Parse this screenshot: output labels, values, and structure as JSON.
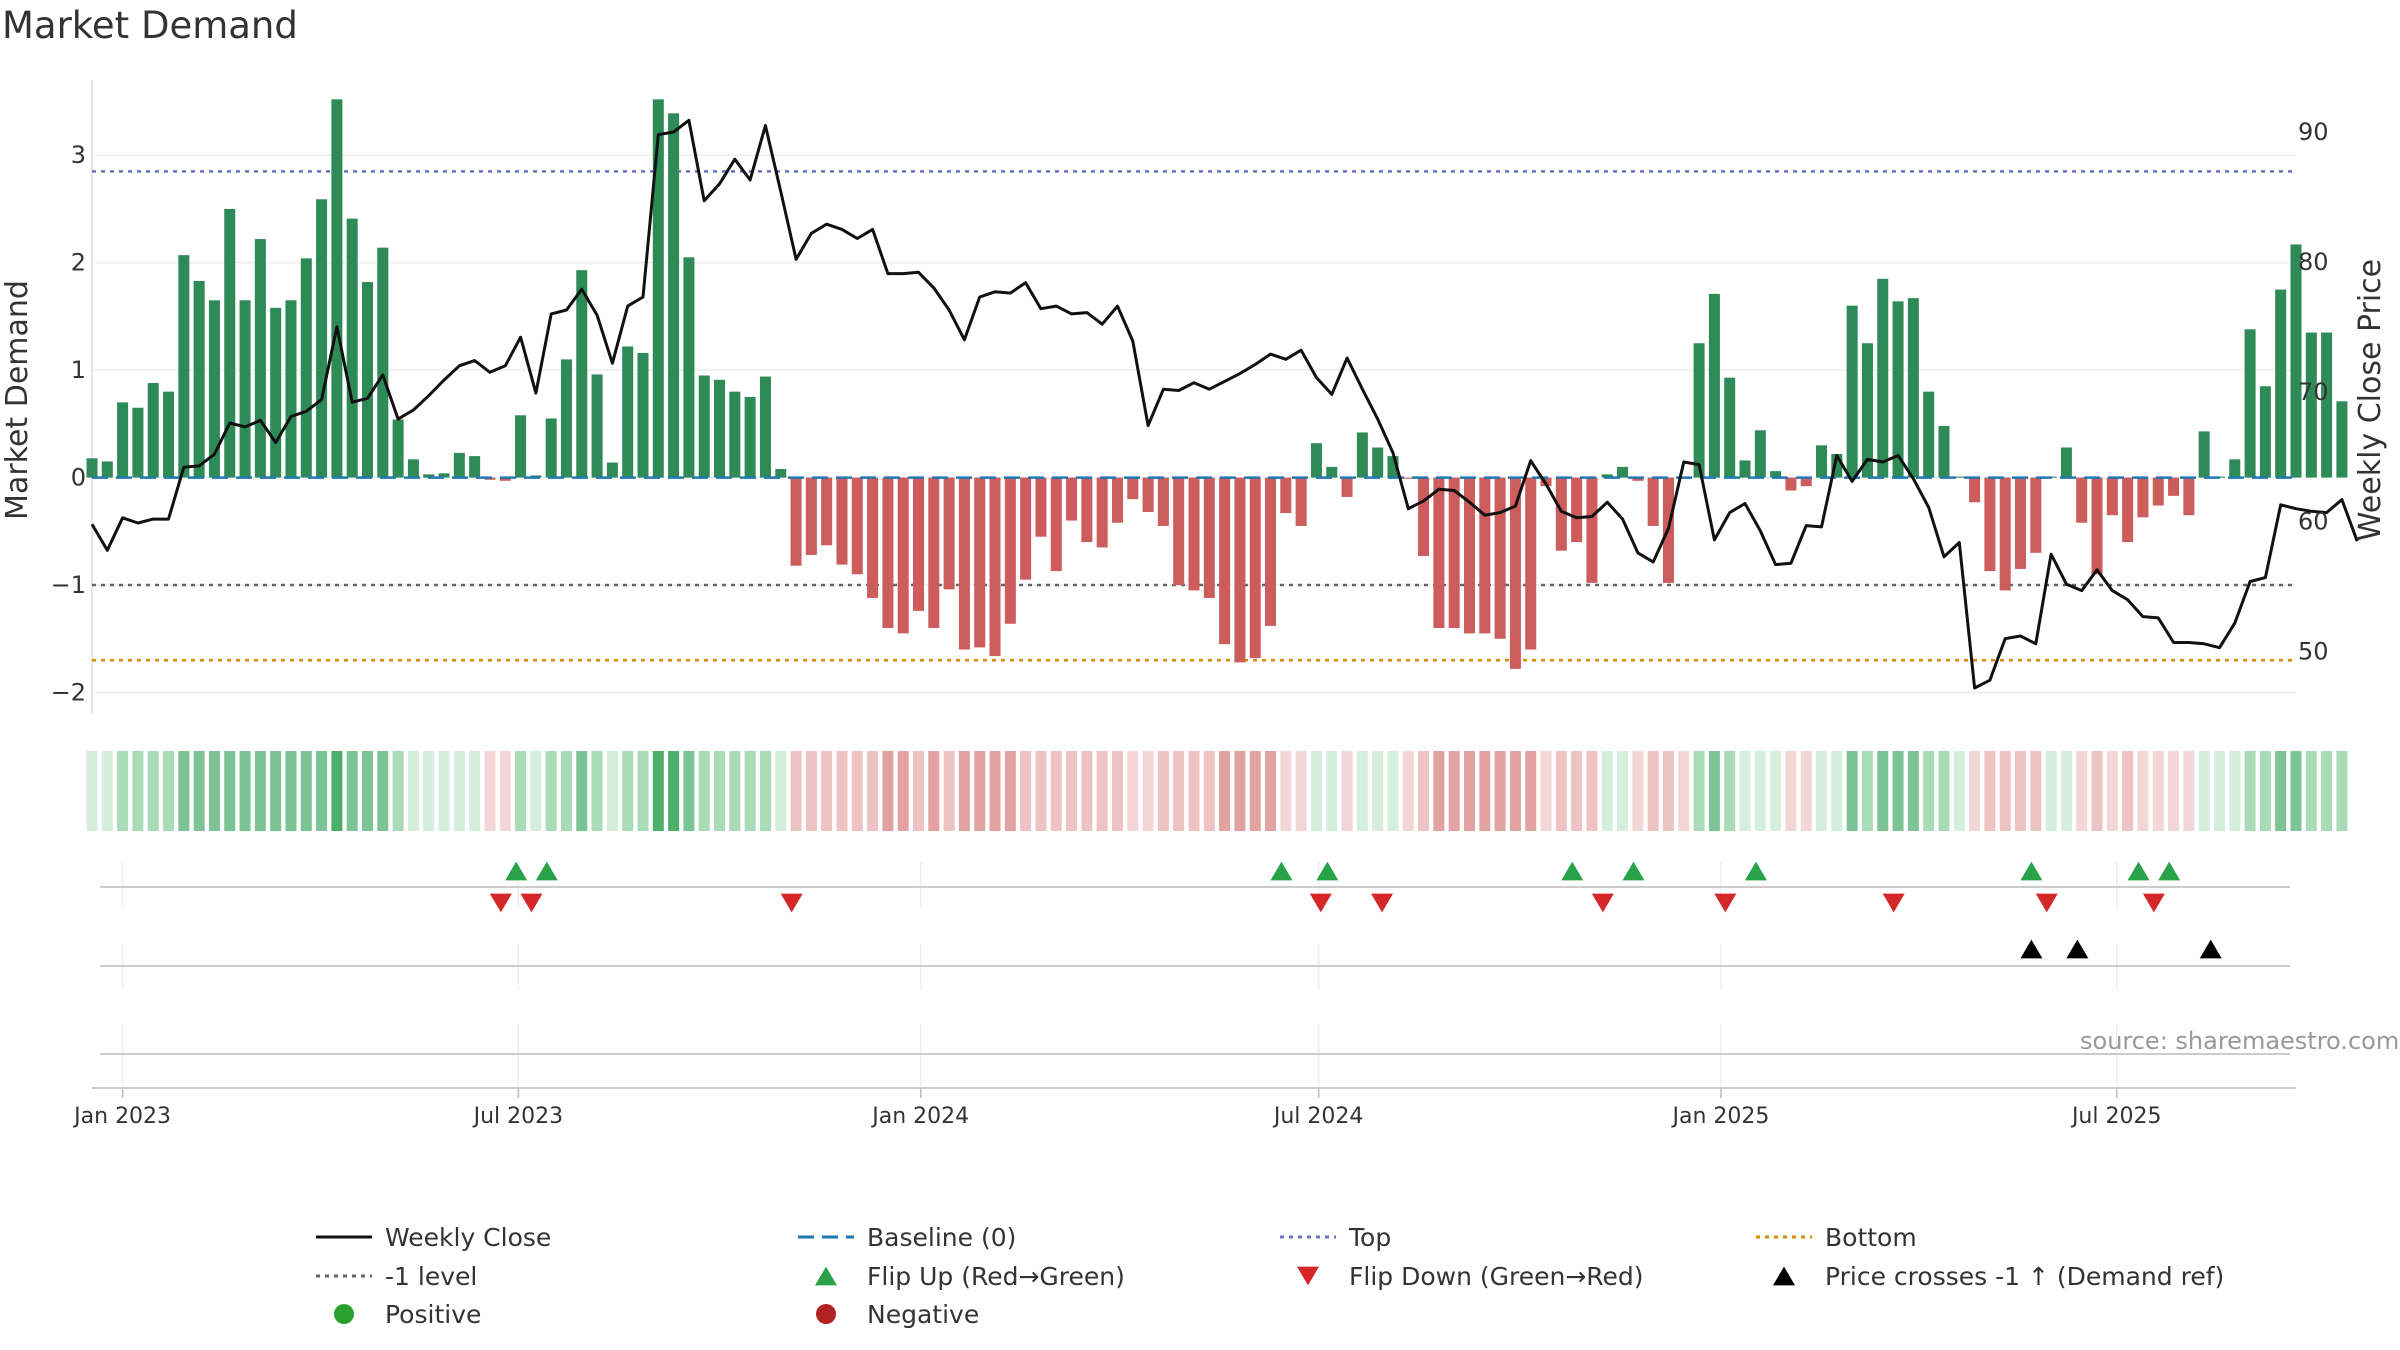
{
  "chart_data": {
    "type": "bar+line",
    "title": "Market Demand",
    "ylabel_left": "Market Demand",
    "ylabel_right": "Weekly Close Price",
    "ylim_left": [
      -2.2,
      3.7
    ],
    "yticks_left": [
      -2,
      -1,
      0,
      1,
      2,
      3
    ],
    "ytick_labels_left": [
      "−2",
      "−1",
      "0",
      "1",
      "2",
      "3"
    ],
    "ylim_right": [
      45.2,
      94
    ],
    "yticks_right": [
      50,
      60,
      70,
      80,
      90
    ],
    "ytick_labels_right": [
      "50",
      "60",
      "70",
      "80",
      "90"
    ],
    "x_start_date": "2022-12-18",
    "x_end_date": "2025-09-21",
    "xticks": [
      {
        "date": "2023-01-01",
        "label": "Jan 2023"
      },
      {
        "date": "2023-07-01",
        "label": "Jul 2023"
      },
      {
        "date": "2024-01-01",
        "label": "Jan 2024"
      },
      {
        "date": "2024-07-01",
        "label": "Jul 2024"
      },
      {
        "date": "2025-01-01",
        "label": "Jan 2025"
      },
      {
        "date": "2025-07-01",
        "label": "Jul 2025"
      }
    ],
    "first_bar_date": "2022-12-18",
    "week_days": 7,
    "demand": [
      0.18,
      0.15,
      0.7,
      0.65,
      0.88,
      0.8,
      2.07,
      1.83,
      1.65,
      2.5,
      1.65,
      2.22,
      1.58,
      1.65,
      2.04,
      2.59,
      3.52,
      2.41,
      1.82,
      2.14,
      0.54,
      0.17,
      0.03,
      0.04,
      0.23,
      0.2,
      -0.02,
      -0.03,
      0.58,
      0.02,
      0.55,
      1.1,
      1.93,
      0.96,
      0.14,
      1.22,
      1.16,
      3.52,
      3.39,
      2.05,
      0.95,
      0.91,
      0.8,
      0.75,
      0.94,
      0.08,
      -0.82,
      -0.72,
      -0.63,
      -0.81,
      -0.9,
      -1.12,
      -1.4,
      -1.45,
      -1.24,
      -1.4,
      -1.04,
      -1.6,
      -1.58,
      -1.66,
      -1.36,
      -0.95,
      -0.55,
      -0.87,
      -0.4,
      -0.6,
      -0.65,
      -0.42,
      -0.2,
      -0.32,
      -0.45,
      -1.0,
      -1.05,
      -1.12,
      -1.55,
      -1.72,
      -1.68,
      -1.38,
      -0.33,
      -0.45,
      0.32,
      0.1,
      -0.18,
      0.42,
      0.28,
      0.2,
      -0.01,
      -0.73,
      -1.4,
      -1.4,
      -1.45,
      -1.45,
      -1.5,
      -1.78,
      -1.6,
      -0.08,
      -0.68,
      -0.6,
      -0.98,
      0.03,
      0.1,
      -0.03,
      -0.45,
      -0.98,
      -0.01,
      1.25,
      1.71,
      0.93,
      0.16,
      0.44,
      0.06,
      -0.12,
      -0.08,
      0.3,
      0.22,
      1.6,
      1.25,
      1.85,
      1.64,
      1.67,
      0.8,
      0.48,
      0.01,
      -0.23,
      -0.87,
      -1.05,
      -0.85,
      -0.7,
      0.01,
      0.28,
      -0.42,
      -0.9,
      -0.35,
      -0.6,
      -0.37,
      -0.26,
      -0.17,
      -0.35,
      0.43,
      0.01,
      0.17,
      1.38,
      0.85,
      1.75,
      2.17,
      1.35,
      1.35,
      0.71
    ],
    "demand_shade": [
      1,
      1,
      2,
      2,
      2,
      2,
      3,
      3,
      3,
      3,
      3,
      3,
      3,
      3,
      3,
      3,
      4,
      3,
      3,
      3,
      2,
      1,
      1,
      1,
      1,
      1,
      1,
      1,
      2,
      1,
      2,
      2,
      3,
      2,
      1,
      2,
      2,
      4,
      4,
      3,
      2,
      2,
      2,
      2,
      2,
      1,
      2,
      2,
      2,
      2,
      2,
      2,
      3,
      3,
      2,
      3,
      2,
      3,
      3,
      3,
      3,
      2,
      2,
      2,
      2,
      2,
      2,
      2,
      1,
      1,
      2,
      2,
      2,
      2,
      3,
      3,
      3,
      3,
      1,
      1,
      1,
      1,
      1,
      1,
      1,
      1,
      1,
      2,
      3,
      3,
      3,
      3,
      3,
      3,
      3,
      1,
      2,
      2,
      2,
      1,
      1,
      1,
      2,
      2,
      1,
      2,
      3,
      2,
      1,
      1,
      1,
      1,
      1,
      1,
      1,
      3,
      2,
      3,
      3,
      3,
      2,
      2,
      1,
      1,
      2,
      2,
      2,
      2,
      1,
      1,
      1,
      2,
      1,
      2,
      1,
      1,
      1,
      1,
      1,
      1,
      1,
      2,
      2,
      3,
      3,
      2,
      2,
      2
    ],
    "close_price": [
      59.8,
      57.8,
      60.3,
      59.9,
      60.2,
      60.2,
      64.2,
      64.3,
      65.2,
      67.6,
      67.3,
      67.8,
      66.1,
      68.1,
      68.5,
      69.4,
      75.0,
      69.2,
      69.5,
      71.3,
      67.9,
      68.6,
      69.7,
      70.9,
      72.0,
      72.4,
      71.5,
      72.0,
      74.2,
      69.9,
      76.0,
      76.3,
      77.9,
      75.9,
      72.2,
      76.6,
      77.3,
      89.8,
      90.0,
      90.9,
      84.7,
      86.0,
      87.9,
      86.3,
      90.5,
      85.4,
      80.2,
      82.2,
      82.9,
      82.5,
      81.8,
      82.5,
      79.1,
      79.1,
      79.2,
      78.0,
      76.3,
      74.0,
      77.3,
      77.7,
      77.6,
      78.4,
      76.4,
      76.6,
      76.0,
      76.1,
      75.2,
      76.6,
      73.9,
      67.4,
      70.2,
      70.1,
      70.7,
      70.2,
      70.8,
      71.4,
      72.1,
      72.9,
      72.5,
      73.2,
      71.1,
      69.8,
      72.6,
      70.2,
      67.9,
      65.3,
      61.0,
      61.6,
      62.5,
      62.4,
      61.5,
      60.5,
      60.7,
      61.2,
      64.7,
      62.9,
      60.8,
      60.3,
      60.4,
      61.5,
      60.2,
      57.6,
      56.9,
      59.5,
      64.6,
      64.4,
      58.6,
      60.7,
      61.4,
      59.3,
      56.7,
      56.8,
      59.7,
      59.6,
      65.1,
      63.1,
      64.8,
      64.6,
      65.1,
      63.3,
      61.1,
      57.3,
      58.4,
      47.2,
      47.8,
      51.0,
      51.2,
      50.6,
      57.5,
      55.2,
      54.7,
      56.3,
      54.7,
      54.0,
      52.7,
      52.6,
      50.7,
      50.7,
      50.6,
      50.3,
      52.2,
      55.4,
      55.7,
      61.3,
      61.0,
      60.8,
      60.7,
      61.7,
      58.5
    ],
    "reference_lines": [
      {
        "name": "Baseline (0)",
        "value": 0,
        "color": "#1f77b4",
        "style": "dashed"
      },
      {
        "name": "Top",
        "value": 2.85,
        "color": "#6c6cc8",
        "style": "dotted"
      },
      {
        "name": "-1 level",
        "value": -1,
        "color": "#666666",
        "style": "dotted"
      },
      {
        "name": "Bottom",
        "value": -1.7,
        "color": "#d98c00",
        "style": "dotted"
      }
    ],
    "flip_up_dates": [
      "2023-06-30",
      "2023-07-14",
      "2024-06-14",
      "2024-07-05",
      "2024-10-25",
      "2024-11-22",
      "2025-01-17",
      "2025-05-23",
      "2025-07-11",
      "2025-07-25"
    ],
    "flip_down_dates": [
      "2023-06-23",
      "2023-07-07",
      "2023-11-03",
      "2024-07-02",
      "2024-07-30",
      "2024-11-08",
      "2025-01-03",
      "2025-03-21",
      "2025-05-30",
      "2025-07-18"
    ],
    "price_cross_dates": [
      "2025-05-23",
      "2025-06-13",
      "2025-08-13"
    ],
    "series_colors": {
      "positive_bar": "#2e8b57",
      "negative_bar": "#cd5c5c",
      "price_line": "#111111",
      "flip_up": "#2aa24a",
      "flip_down": "#d62728",
      "price_cross": "#000000",
      "positive_dot": "#2ca02c",
      "negative_dot": "#b22222",
      "strip_positive": [
        "#d6eedc",
        "#a9dbb6",
        "#7cc496",
        "#4caf6a"
      ],
      "strip_negative": [
        "#f3d7d7",
        "#eec3c3",
        "#e2a2a2",
        "#d88d8d"
      ]
    },
    "legend": [
      {
        "label": "Weekly Close",
        "marker": "line-solid",
        "color": "#111111"
      },
      {
        "label": "Baseline (0)",
        "marker": "line-dashed",
        "color": "#1f77b4"
      },
      {
        "label": "Top",
        "marker": "line-dotted",
        "color": "#6c6cc8"
      },
      {
        "label": "Bottom",
        "marker": "line-dotted",
        "color": "#d98c00"
      },
      {
        "label": "-1 level",
        "marker": "line-dotted",
        "color": "#666666"
      },
      {
        "label": "Flip Up (Red→Green)",
        "marker": "triangle-up",
        "color": "#2aa24a"
      },
      {
        "label": "Flip Down (Green→Red)",
        "marker": "triangle-down",
        "color": "#d62728"
      },
      {
        "label": "Price crosses -1 ↑ (Demand ref)",
        "marker": "triangle-up",
        "color": "#000000"
      },
      {
        "label": "Positive",
        "marker": "dot",
        "color": "#2ca02c"
      },
      {
        "label": "Negative",
        "marker": "dot",
        "color": "#b22222"
      }
    ],
    "source_note": "source: sharemaestro.com"
  }
}
